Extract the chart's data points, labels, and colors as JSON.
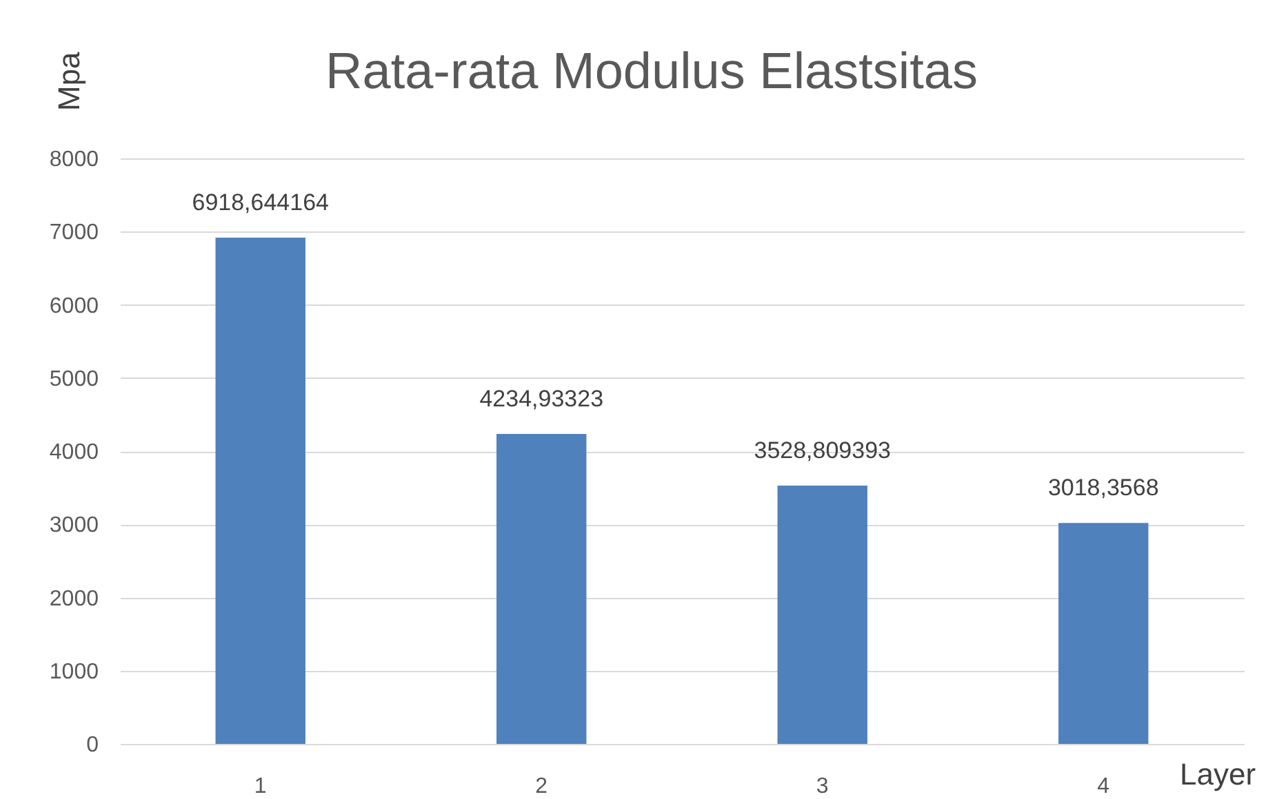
{
  "chart_data": {
    "type": "bar",
    "title": "Rata-rata Modulus Elastsitas",
    "xlabel": "Layer",
    "ylabel": "Mpa",
    "categories": [
      "1",
      "2",
      "3",
      "4"
    ],
    "values": [
      6918.644164,
      4234.93323,
      3528.809393,
      3018.3568
    ],
    "value_labels": [
      "6918,644164",
      "4234,93323",
      "3528,809393",
      "3018,3568"
    ],
    "color": "#4f81bd",
    "ylim": [
      0,
      8000
    ],
    "yticks": [
      0,
      1000,
      2000,
      3000,
      4000,
      5000,
      6000,
      7000,
      8000
    ],
    "grid": "y"
  }
}
